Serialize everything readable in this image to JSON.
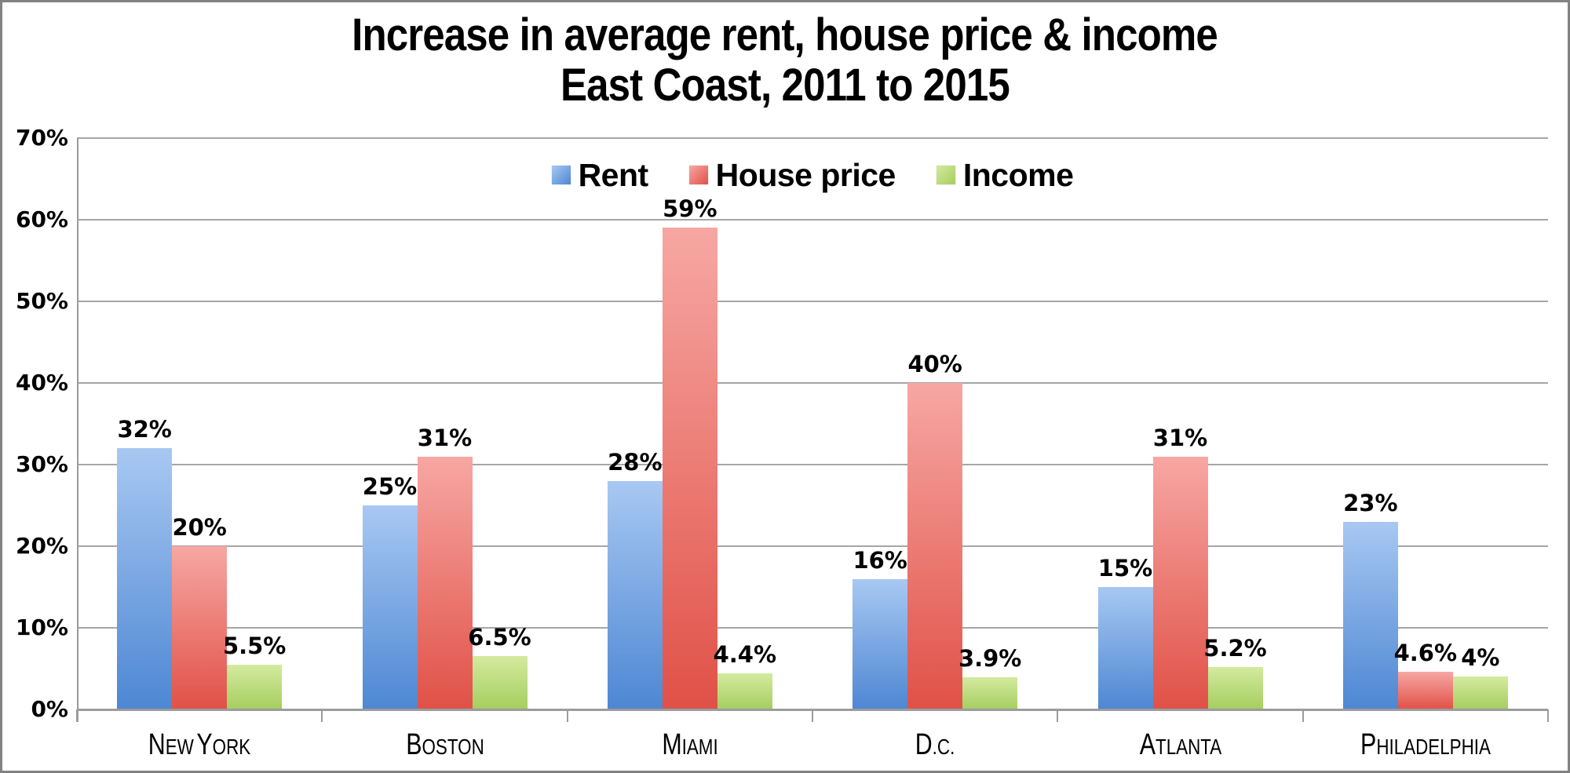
{
  "title": {
    "line1": "Increase in average rent, house price & income",
    "line2": "East Coast, 2011 to 2015"
  },
  "chart_data": {
    "type": "bar",
    "title": "Increase in average rent, house price & income",
    "subtitle": "East Coast, 2011 to 2015",
    "categories": [
      "New York",
      "Boston",
      "Miami",
      "D.C.",
      "Atlanta",
      "Philadelphia"
    ],
    "series": [
      {
        "name": "Rent",
        "values": [
          32,
          25,
          28,
          16,
          15,
          23
        ],
        "labels": [
          "32%",
          "25%",
          "28%",
          "16%",
          "15%",
          "23%"
        ],
        "color_top": "#A8C8F2",
        "color_bottom": "#4D87D3"
      },
      {
        "name": "House price",
        "values": [
          20,
          31,
          59,
          40,
          31,
          4.6
        ],
        "labels": [
          "20%",
          "31%",
          "59%",
          "40%",
          "31%",
          "4.6%"
        ],
        "color_top": "#F7A7A3",
        "color_bottom": "#E05147"
      },
      {
        "name": "Income",
        "values": [
          5.5,
          6.5,
          4.4,
          3.9,
          5.2,
          4
        ],
        "labels": [
          "5.5%",
          "6.5%",
          "4.4%",
          "3.9%",
          "5.2%",
          "4%"
        ],
        "color_top": "#D4EA9F",
        "color_bottom": "#A5CE5F"
      }
    ],
    "y_axis": {
      "min": 0,
      "max": 70,
      "step": 10,
      "tick_labels": [
        "0%",
        "10%",
        "20%",
        "30%",
        "40%",
        "50%",
        "60%",
        "70%"
      ]
    },
    "legend_position": "top-center",
    "grid": true
  },
  "colors": {
    "gridline": "#A6A6A6",
    "axis": "#9C9C9C",
    "frame": "#828282",
    "text": "#000000",
    "background": "#FFFFFF"
  }
}
